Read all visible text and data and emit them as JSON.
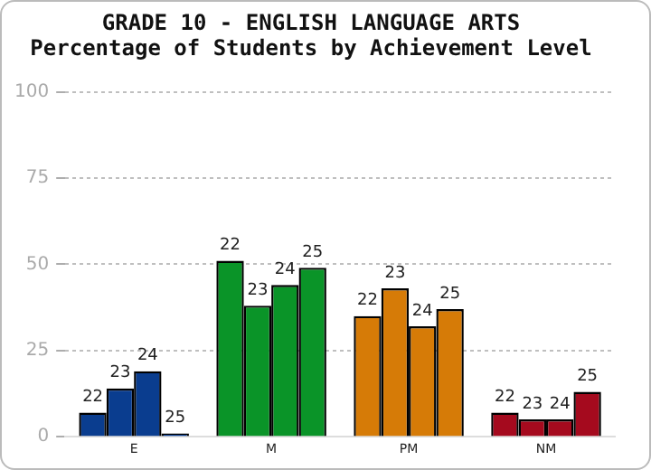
{
  "chart_data": {
    "type": "bar",
    "title": "GRADE 10 - ENGLISH LANGUAGE ARTS",
    "subtitle": "Percentage of Students by Achievement Level",
    "categories": [
      "E",
      "M",
      "PM",
      "NM"
    ],
    "series": [
      {
        "name": "22",
        "colors": [
          "#0a3d8f",
          "#0a9428",
          "#d67b07",
          "#a50a1e"
        ],
        "values": [
          7,
          51,
          35,
          7
        ]
      },
      {
        "name": "23",
        "colors": [
          "#0a3d8f",
          "#0a9428",
          "#d67b07",
          "#a50a1e"
        ],
        "values": [
          14,
          38,
          43,
          5
        ]
      },
      {
        "name": "24",
        "colors": [
          "#0a3d8f",
          "#0a9428",
          "#d67b07",
          "#a50a1e"
        ],
        "values": [
          19,
          44,
          32,
          5
        ]
      },
      {
        "name": "25",
        "colors": [
          "#0a3d8f",
          "#0a9428",
          "#d67b07",
          "#a50a1e"
        ],
        "values": [
          1,
          49,
          37,
          13
        ]
      }
    ],
    "ylim": [
      0,
      100
    ],
    "yticks": [
      0,
      25,
      50,
      75,
      100
    ],
    "grid": "y",
    "legend": false
  }
}
